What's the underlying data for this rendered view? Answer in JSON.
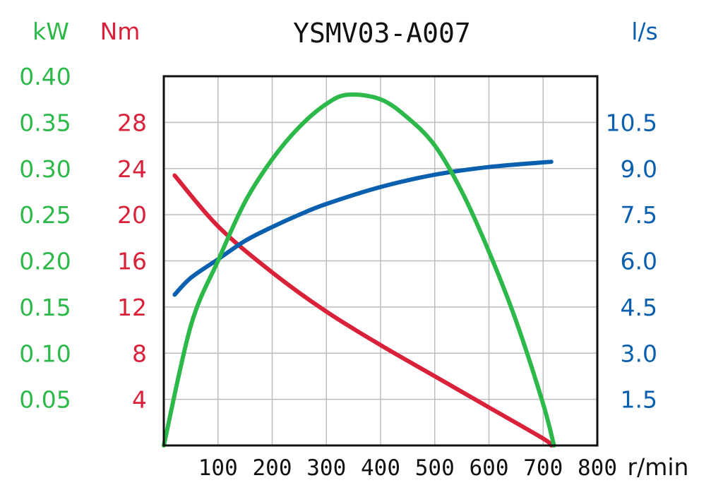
{
  "chart_data": {
    "type": "line",
    "title": "YSMV03-A007",
    "colors": {
      "power": "#2db84a",
      "torque": "#d9213a",
      "flow": "#0a5fae"
    },
    "x_axis": {
      "label": "r/min",
      "lim": [
        0,
        800
      ],
      "ticks": [
        100,
        200,
        300,
        400,
        500,
        600,
        700,
        800
      ]
    },
    "y_axes": [
      {
        "id": "power",
        "label": "kW",
        "lim": [
          0,
          0.4
        ],
        "ticks": [
          "0.05",
          "0.10",
          "0.15",
          "0.20",
          "0.25",
          "0.30",
          "0.35",
          "0.40"
        ]
      },
      {
        "id": "torque",
        "label": "Nm",
        "lim": [
          0,
          32
        ],
        "ticks": [
          "4",
          "8",
          "12",
          "16",
          "20",
          "24",
          "28"
        ]
      },
      {
        "id": "flow",
        "label": "l/s",
        "lim": [
          0,
          12
        ],
        "ticks": [
          "1.5",
          "3.0",
          "4.5",
          "6.0",
          "7.5",
          "9.0",
          "10.5"
        ]
      }
    ],
    "grid": true,
    "series": [
      {
        "id": "torque",
        "axis": "torque",
        "x": [
          20,
          100,
          200,
          300,
          400,
          500,
          600,
          700,
          715
        ],
        "y": [
          23.4,
          19.0,
          15.0,
          11.6,
          8.7,
          6.0,
          3.3,
          0.6,
          0
        ]
      },
      {
        "id": "flow",
        "axis": "flow",
        "x": [
          20,
          50,
          100,
          150,
          200,
          250,
          300,
          400,
          500,
          600,
          700,
          715
        ],
        "y": [
          4.9,
          5.45,
          6.05,
          6.65,
          7.1,
          7.5,
          7.85,
          8.4,
          8.8,
          9.05,
          9.2,
          9.22
        ]
      },
      {
        "id": "power",
        "axis": "power",
        "x": [
          0,
          50,
          100,
          150,
          200,
          250,
          300,
          340,
          400,
          450,
          500,
          550,
          600,
          650,
          700,
          720
        ],
        "y": [
          0,
          0.13,
          0.2,
          0.264,
          0.31,
          0.345,
          0.37,
          0.38,
          0.375,
          0.355,
          0.325,
          0.275,
          0.21,
          0.135,
          0.045,
          0
        ]
      }
    ]
  }
}
